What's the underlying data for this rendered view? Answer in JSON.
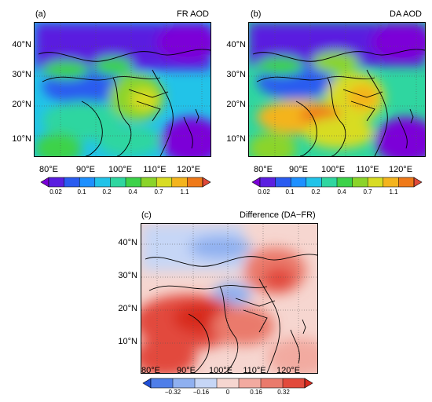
{
  "panels": [
    {
      "id": "a",
      "tag": "(a)",
      "title": "FR AOD",
      "lat_labels": [
        "40°N",
        "30°N",
        "20°N",
        "10°N"
      ],
      "lon_labels": [
        "80°E",
        "90°E",
        "100°E",
        "110°E",
        "120°E"
      ],
      "colorbar_ticks": [
        "0.02",
        "0.1",
        "0.2",
        "0.4",
        "0.7",
        "1.1"
      ],
      "palette": [
        "#7b00d8",
        "#5a1fe0",
        "#2a5cf0",
        "#1e90ff",
        "#22c3e8",
        "#2fd6a0",
        "#3dd24a",
        "#8bd42a",
        "#d8dc24",
        "#f4b41e",
        "#ef7a1a",
        "#e04a3a"
      ]
    },
    {
      "id": "b",
      "tag": "(b)",
      "title": "DA AOD",
      "lat_labels": [
        "40°N",
        "30°N",
        "20°N",
        "10°N"
      ],
      "lon_labels": [
        "80°E",
        "90°E",
        "100°E",
        "110°E",
        "120°E"
      ],
      "colorbar_ticks": [
        "0.02",
        "0.1",
        "0.2",
        "0.4",
        "0.7",
        "1.1"
      ],
      "palette": [
        "#7b00d8",
        "#5a1fe0",
        "#2a5cf0",
        "#1e90ff",
        "#22c3e8",
        "#2fd6a0",
        "#3dd24a",
        "#8bd42a",
        "#d8dc24",
        "#f4b41e",
        "#ef7a1a",
        "#e04a3a"
      ]
    },
    {
      "id": "c",
      "tag": "(c)",
      "title": "Difference (DA−FR)",
      "lat_labels": [
        "40°N",
        "30°N",
        "20°N",
        "10°N"
      ],
      "lon_labels": [
        "80°E",
        "90°E",
        "100°E",
        "110°E",
        "120°E"
      ],
      "colorbar_ticks": [
        "−0.32",
        "−0.16",
        "0",
        "0.16",
        "0.32"
      ],
      "palette": [
        "#1f4fd8",
        "#4f7ee8",
        "#8fb0f0",
        "#c6d6f6",
        "#f6d6d0",
        "#f2aaa0",
        "#ea7a6c",
        "#e24a3c",
        "#d82a1e"
      ]
    }
  ]
}
